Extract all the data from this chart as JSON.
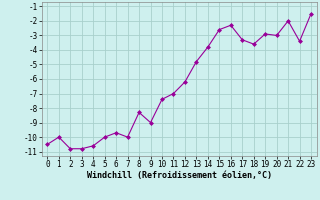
{
  "x": [
    0,
    1,
    2,
    3,
    4,
    5,
    6,
    7,
    8,
    9,
    10,
    11,
    12,
    13,
    14,
    15,
    16,
    17,
    18,
    19,
    20,
    21,
    22,
    23
  ],
  "y": [
    -10.5,
    -10.0,
    -10.8,
    -10.8,
    -10.6,
    -10.0,
    -9.7,
    -10.0,
    -8.3,
    -9.0,
    -7.4,
    -7.0,
    -6.2,
    -4.8,
    -3.8,
    -2.6,
    -2.3,
    -3.3,
    -3.6,
    -2.9,
    -3.0,
    -2.0,
    -3.4,
    -1.5
  ],
  "line_color": "#990099",
  "marker": "D",
  "marker_size": 2.0,
  "bg_color": "#cef0ee",
  "grid_color": "#a8d0cc",
  "xlabel": "Windchill (Refroidissement éolien,°C)",
  "ylim": [
    -11,
    -1
  ],
  "xlim": [
    -0.5,
    23.5
  ],
  "yticks": [
    -11,
    -10,
    -9,
    -8,
    -7,
    -6,
    -5,
    -4,
    -3,
    -2,
    -1
  ],
  "xticks": [
    0,
    1,
    2,
    3,
    4,
    5,
    6,
    7,
    8,
    9,
    10,
    11,
    12,
    13,
    14,
    15,
    16,
    17,
    18,
    19,
    20,
    21,
    22,
    23
  ],
  "tick_fontsize": 5.5,
  "xlabel_fontsize": 6.0,
  "line_width": 0.8
}
